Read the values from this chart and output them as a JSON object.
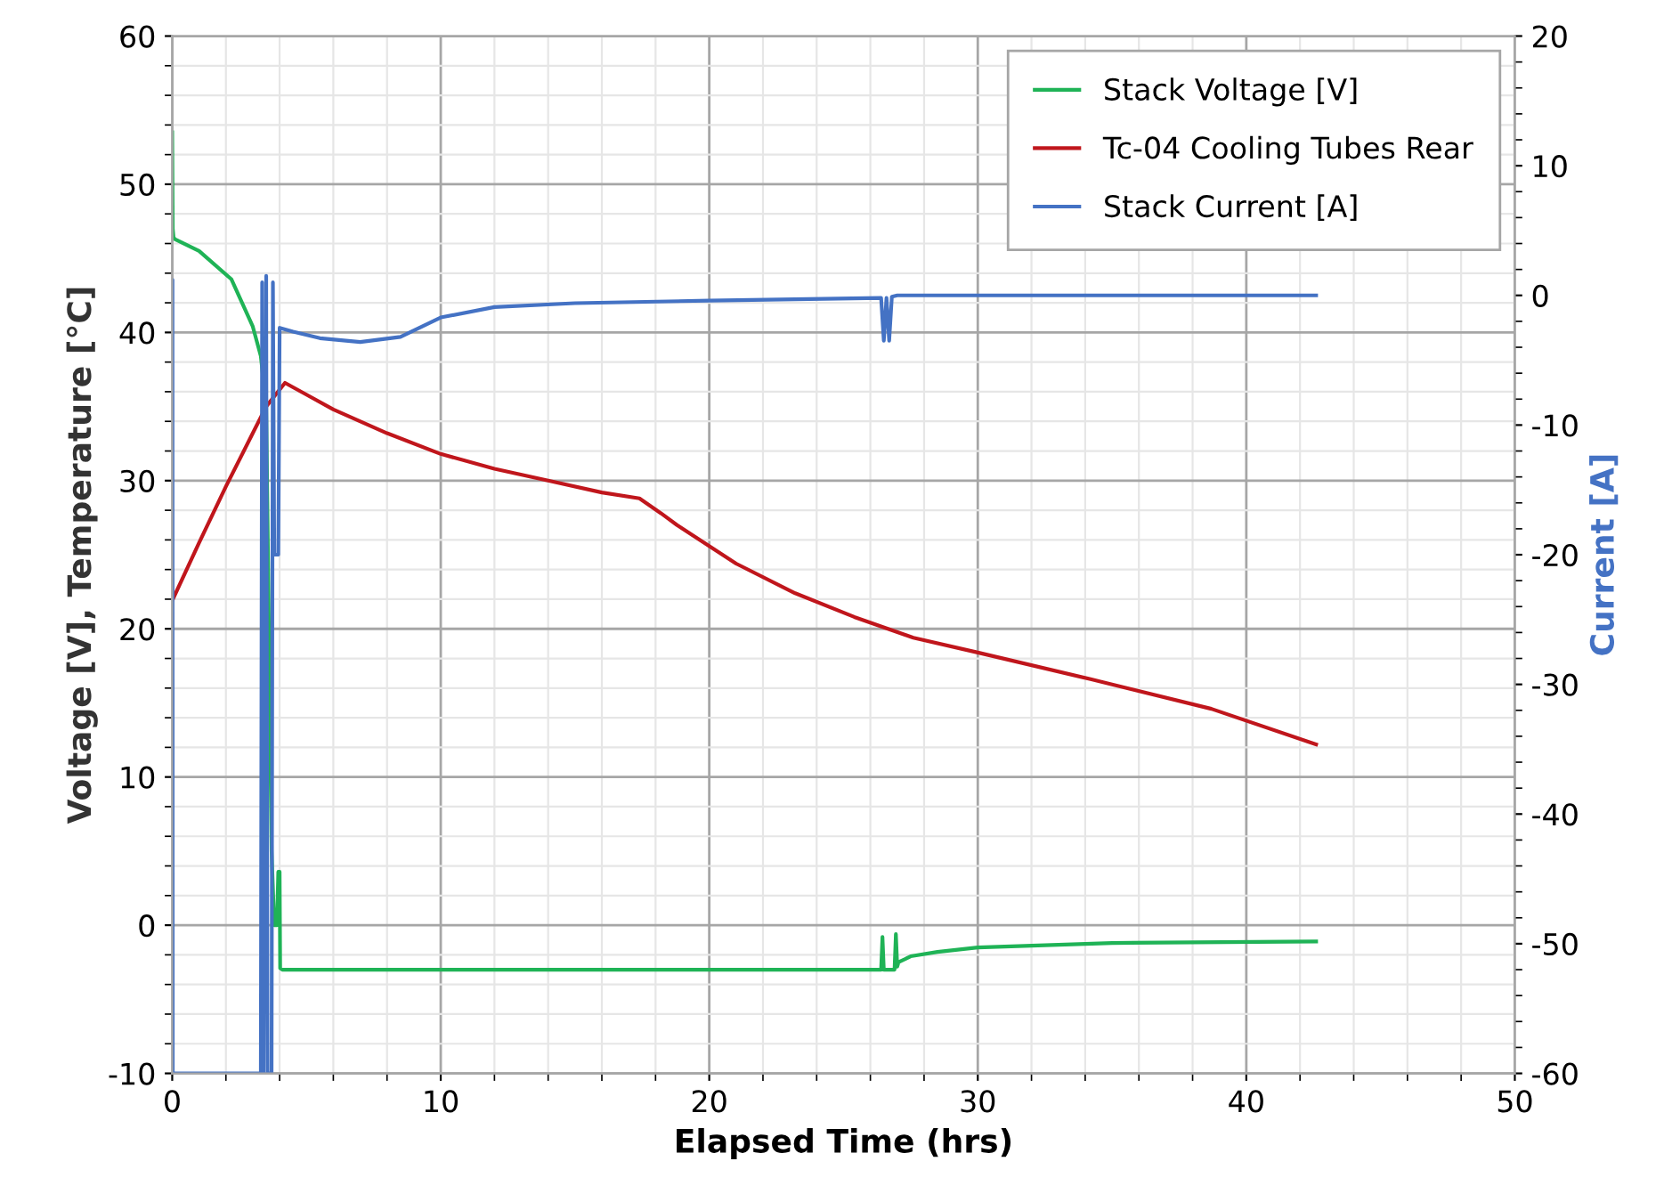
{
  "chart_data": {
    "type": "line",
    "xlabel": "Elapsed Time (hrs)",
    "ylabel": "Voltage [V], Temperature [°C]",
    "y2label": "Current [A]",
    "xlim": [
      0,
      50
    ],
    "xticks": [
      0,
      10,
      20,
      30,
      40,
      50
    ],
    "ylim": [
      -10,
      60
    ],
    "yticks": [
      -10,
      0,
      10,
      20,
      30,
      40,
      50,
      60
    ],
    "y2lim": [
      -60,
      20
    ],
    "y2ticks": [
      -60,
      -50,
      -40,
      -30,
      -20,
      -10,
      0,
      10,
      20
    ],
    "grid": true,
    "legend": "top right",
    "marker": "none",
    "line_style": "solid",
    "series": [
      {
        "name": "Stack Voltage [V]",
        "color": "#1fb356",
        "x": [
          0,
          0.02,
          0.05,
          0.1,
          1,
          2.2,
          3,
          3.3,
          3.5,
          3.6,
          3.7,
          3.8,
          3.9,
          3.95,
          4.0,
          4.02,
          4.1,
          10,
          20,
          26.4,
          26.45,
          26.5,
          26.55,
          26.9,
          26.95,
          27.0,
          27.05,
          27.5,
          28.5,
          30,
          35,
          42.6
        ],
        "values": [
          53.5,
          47,
          46.4,
          46.3,
          45.5,
          43.6,
          40.4,
          38.4,
          35,
          20,
          5,
          0,
          0,
          3.6,
          3.6,
          -2.9,
          -3,
          -3,
          -3,
          -3,
          -0.8,
          -3,
          -3,
          -3,
          -0.6,
          -2.8,
          -2.5,
          -2.1,
          -1.8,
          -1.5,
          -1.2,
          -1.1
        ]
      },
      {
        "name": "Tc-04 Cooling Tubes Rear",
        "color": "#c0161c",
        "x": [
          0,
          1,
          2,
          3,
          3.5,
          4.2,
          5,
          6,
          8,
          10,
          12,
          14,
          16,
          17.4,
          18.2,
          18.8,
          21,
          23.2,
          25.4,
          27.6,
          30,
          34.2,
          38.7,
          42.6
        ],
        "values": [
          21.9,
          25.8,
          29.6,
          33.2,
          35,
          36.6,
          35.8,
          34.8,
          33.2,
          31.8,
          30.8,
          30,
          29.2,
          28.8,
          27.8,
          27,
          24.4,
          22.4,
          20.8,
          19.4,
          18.4,
          16.6,
          14.6,
          12.2
        ]
      },
      {
        "name": "Stack Current [A]",
        "color": "#4472c4",
        "axis": "y2",
        "x": [
          0,
          0.01,
          0.02,
          3.3,
          3.35,
          3.4,
          3.5,
          3.55,
          3.7,
          3.75,
          3.8,
          3.95,
          4.0,
          4.5,
          5.5,
          7,
          8.5,
          10,
          12,
          15,
          20,
          26.4,
          26.5,
          26.6,
          26.7,
          26.8,
          27.0,
          30,
          35,
          42.6
        ],
        "values": [
          1.2,
          1.2,
          -60,
          -60,
          1.0,
          -60,
          1.5,
          -60,
          -60,
          1.0,
          -20,
          -20,
          -2.5,
          -2.8,
          -3.3,
          -3.6,
          -3.2,
          -1.7,
          -0.9,
          -0.6,
          -0.4,
          -0.2,
          -3.5,
          -0.2,
          -3.5,
          -0.1,
          0,
          0,
          0,
          0
        ]
      }
    ]
  }
}
